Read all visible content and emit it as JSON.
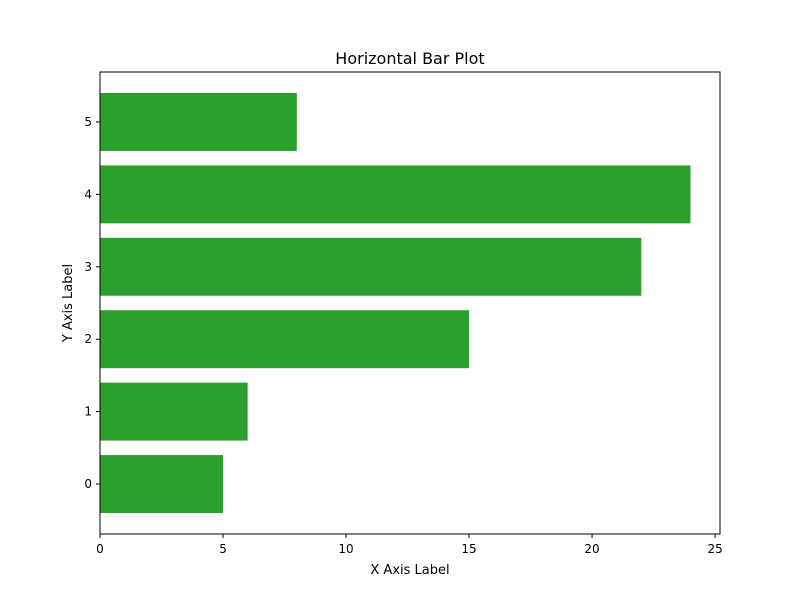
{
  "chart_data": {
    "type": "bar",
    "orientation": "horizontal",
    "title": "Horizontal Bar Plot",
    "xlabel": "X Axis Label",
    "ylabel": "Y Axis Label",
    "categories": [
      "0",
      "1",
      "2",
      "3",
      "4",
      "5"
    ],
    "values": [
      5,
      6,
      15,
      22,
      24,
      8
    ],
    "xlim": [
      0,
      25.2
    ],
    "ylim": [
      -0.69,
      5.69
    ],
    "xticks": [
      0,
      5,
      10,
      15,
      20,
      25
    ],
    "bar_color": "#2ca02c",
    "grid": false,
    "legend": "none"
  }
}
